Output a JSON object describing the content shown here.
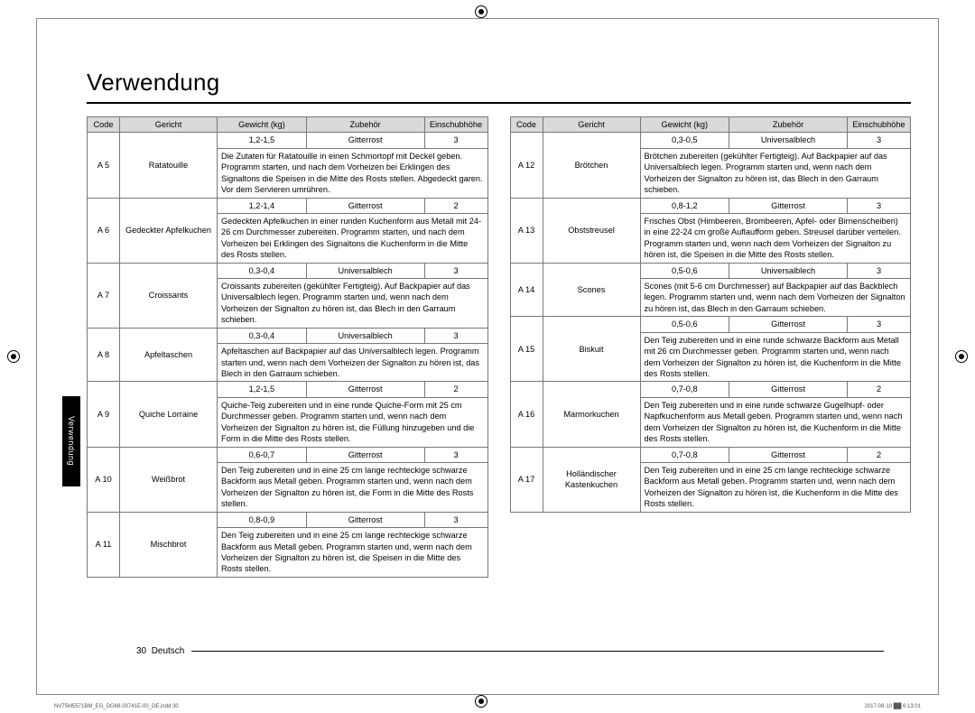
{
  "title": "Verwendung",
  "side_tab": "Verwendung",
  "page_num": "30",
  "lang": "Deutsch",
  "indd": "NV75M5571BM_EG_DG68-00741E-00_DE.indd   30",
  "timestamp": "2017-08-10   ██ 6:13:01",
  "headers": {
    "code": "Code",
    "dish": "Gericht",
    "weight": "Gewicht (kg)",
    "accessory": "Zubehör",
    "level": "Einschubhöhe"
  },
  "left": [
    {
      "code": "A 5",
      "dish": "Ratatouille",
      "weight": "1,2-1,5",
      "acc": "Gitterrost",
      "lvl": "3",
      "desc": "Die Zutaten für Ratatouille in einen Schmortopf mit Deckel geben. Programm starten, und nach dem Vorheizen bei Erklingen des Signaltons die Speisen in die Mitte des Rosts stellen. Abgedeckt garen. Vor dem Servieren umrühren."
    },
    {
      "code": "A 6",
      "dish": "Gedeckter Apfelkuchen",
      "weight": "1,2-1,4",
      "acc": "Gitterrost",
      "lvl": "2",
      "desc": "Gedeckten Apfelkuchen in einer runden Kuchenform aus Metall mit 24-26 cm Durchmesser zubereiten. Programm starten, und nach dem Vorheizen bei Erklingen des Signaltons die Kuchenform in die Mitte des Rosts stellen."
    },
    {
      "code": "A 7",
      "dish": "Croissants",
      "weight": "0,3-0,4",
      "acc": "Universalblech",
      "lvl": "3",
      "desc": "Croissants zubereiten (gekühlter Fertigteig). Auf Backpapier auf das Universalblech legen. Programm starten und, wenn nach dem Vorheizen der Signalton zu hören ist, das Blech in den Garraum schieben."
    },
    {
      "code": "A 8",
      "dish": "Apfeltaschen",
      "weight": "0,3-0,4",
      "acc": "Universalblech",
      "lvl": "3",
      "desc": "Apfeltaschen auf Backpapier auf das Universalblech legen. Programm starten und, wenn nach dem Vorheizen der Signalton zu hören ist, das Blech in den Garraum schieben."
    },
    {
      "code": "A 9",
      "dish": "Quiche Lorraine",
      "weight": "1,2-1,5",
      "acc": "Gitterrost",
      "lvl": "2",
      "desc": "Quiche-Teig zubereiten und in eine runde Quiche-Form mit 25 cm Durchmesser geben. Programm starten und, wenn nach dem Vorheizen der Signalton zu hören ist, die Füllung hinzugeben und die Form in die Mitte des Rosts stellen."
    },
    {
      "code": "A 10",
      "dish": "Weißbrot",
      "weight": "0,6-0,7",
      "acc": "Gitterrost",
      "lvl": "3",
      "desc": "Den Teig zubereiten und in eine 25 cm lange rechteckige schwarze Backform aus Metall geben. Programm starten und, wenn nach dem Vorheizen der Signalton zu hören ist, die Form in die Mitte des Rosts stellen."
    },
    {
      "code": "A 11",
      "dish": "Mischbrot",
      "weight": "0,8-0,9",
      "acc": "Gitterrost",
      "lvl": "3",
      "desc": "Den Teig zubereiten und in eine 25 cm lange rechteckige schwarze Backform aus Metall geben. Programm starten und, wenn nach dem Vorheizen der Signalton zu hören ist, die Speisen in die Mitte des Rosts stellen."
    }
  ],
  "right": [
    {
      "code": "A 12",
      "dish": "Brötchen",
      "weight": "0,3-0,5",
      "acc": "Universalblech",
      "lvl": "3",
      "desc": "Brötchen zubereiten (gekühlter Fertigteig). Auf Backpapier auf das Universalblech legen. Programm starten und, wenn nach dem Vorheizen der Signalton zu hören ist, das Blech in den Garraum schieben."
    },
    {
      "code": "A 13",
      "dish": "Obststreusel",
      "weight": "0,8-1,2",
      "acc": "Gitterrost",
      "lvl": "3",
      "desc": "Frisches Obst (Himbeeren, Brombeeren, Apfel- oder Birnenscheiben) in eine 22-24 cm große Auflaufform geben. Streusel darüber verteilen. Programm starten und, wenn nach dem Vorheizen der Signalton zu hören ist, die Speisen in die Mitte des Rosts stellen."
    },
    {
      "code": "A 14",
      "dish": "Scones",
      "weight": "0,5-0,6",
      "acc": "Universalblech",
      "lvl": "3",
      "desc": "Scones (mit 5-6 cm Durchmesser) auf Backpapier auf das Backblech legen. Programm starten und, wenn nach dem Vorheizen der Signalton zu hören ist, das Blech in den Garraum schieben."
    },
    {
      "code": "A 15",
      "dish": "Biskuit",
      "weight": "0,5-0,6",
      "acc": "Gitterrost",
      "lvl": "3",
      "desc": "Den Teig zubereiten und in eine runde schwarze Backform aus Metall mit 26 cm Durchmesser geben. Programm starten und, wenn nach dem Vorheizen der Signalton zu hören ist, die Kuchenform in die Mitte des Rosts stellen."
    },
    {
      "code": "A 16",
      "dish": "Marmorkuchen",
      "weight": "0,7-0,8",
      "acc": "Gitterrost",
      "lvl": "2",
      "desc": "Den Teig zubereiten und in eine runde schwarze Gugelhupf- oder Napfkuchenform aus Metall geben. Programm starten und, wenn nach dem Vorheizen der Signalton zu hören ist, die Kuchenform in die Mitte des Rosts stellen."
    },
    {
      "code": "A 17",
      "dish": "Holländischer Kastenkuchen",
      "weight": "0,7-0,8",
      "acc": "Gitterrost",
      "lvl": "2",
      "desc": "Den Teig zubereiten und in eine 25 cm lange rechteckige schwarze Backform aus Metall geben. Programm starten und, wenn nach dem Vorheizen der Signalton zu hören ist, die Kuchenform in die Mitte des Rosts stellen."
    }
  ]
}
